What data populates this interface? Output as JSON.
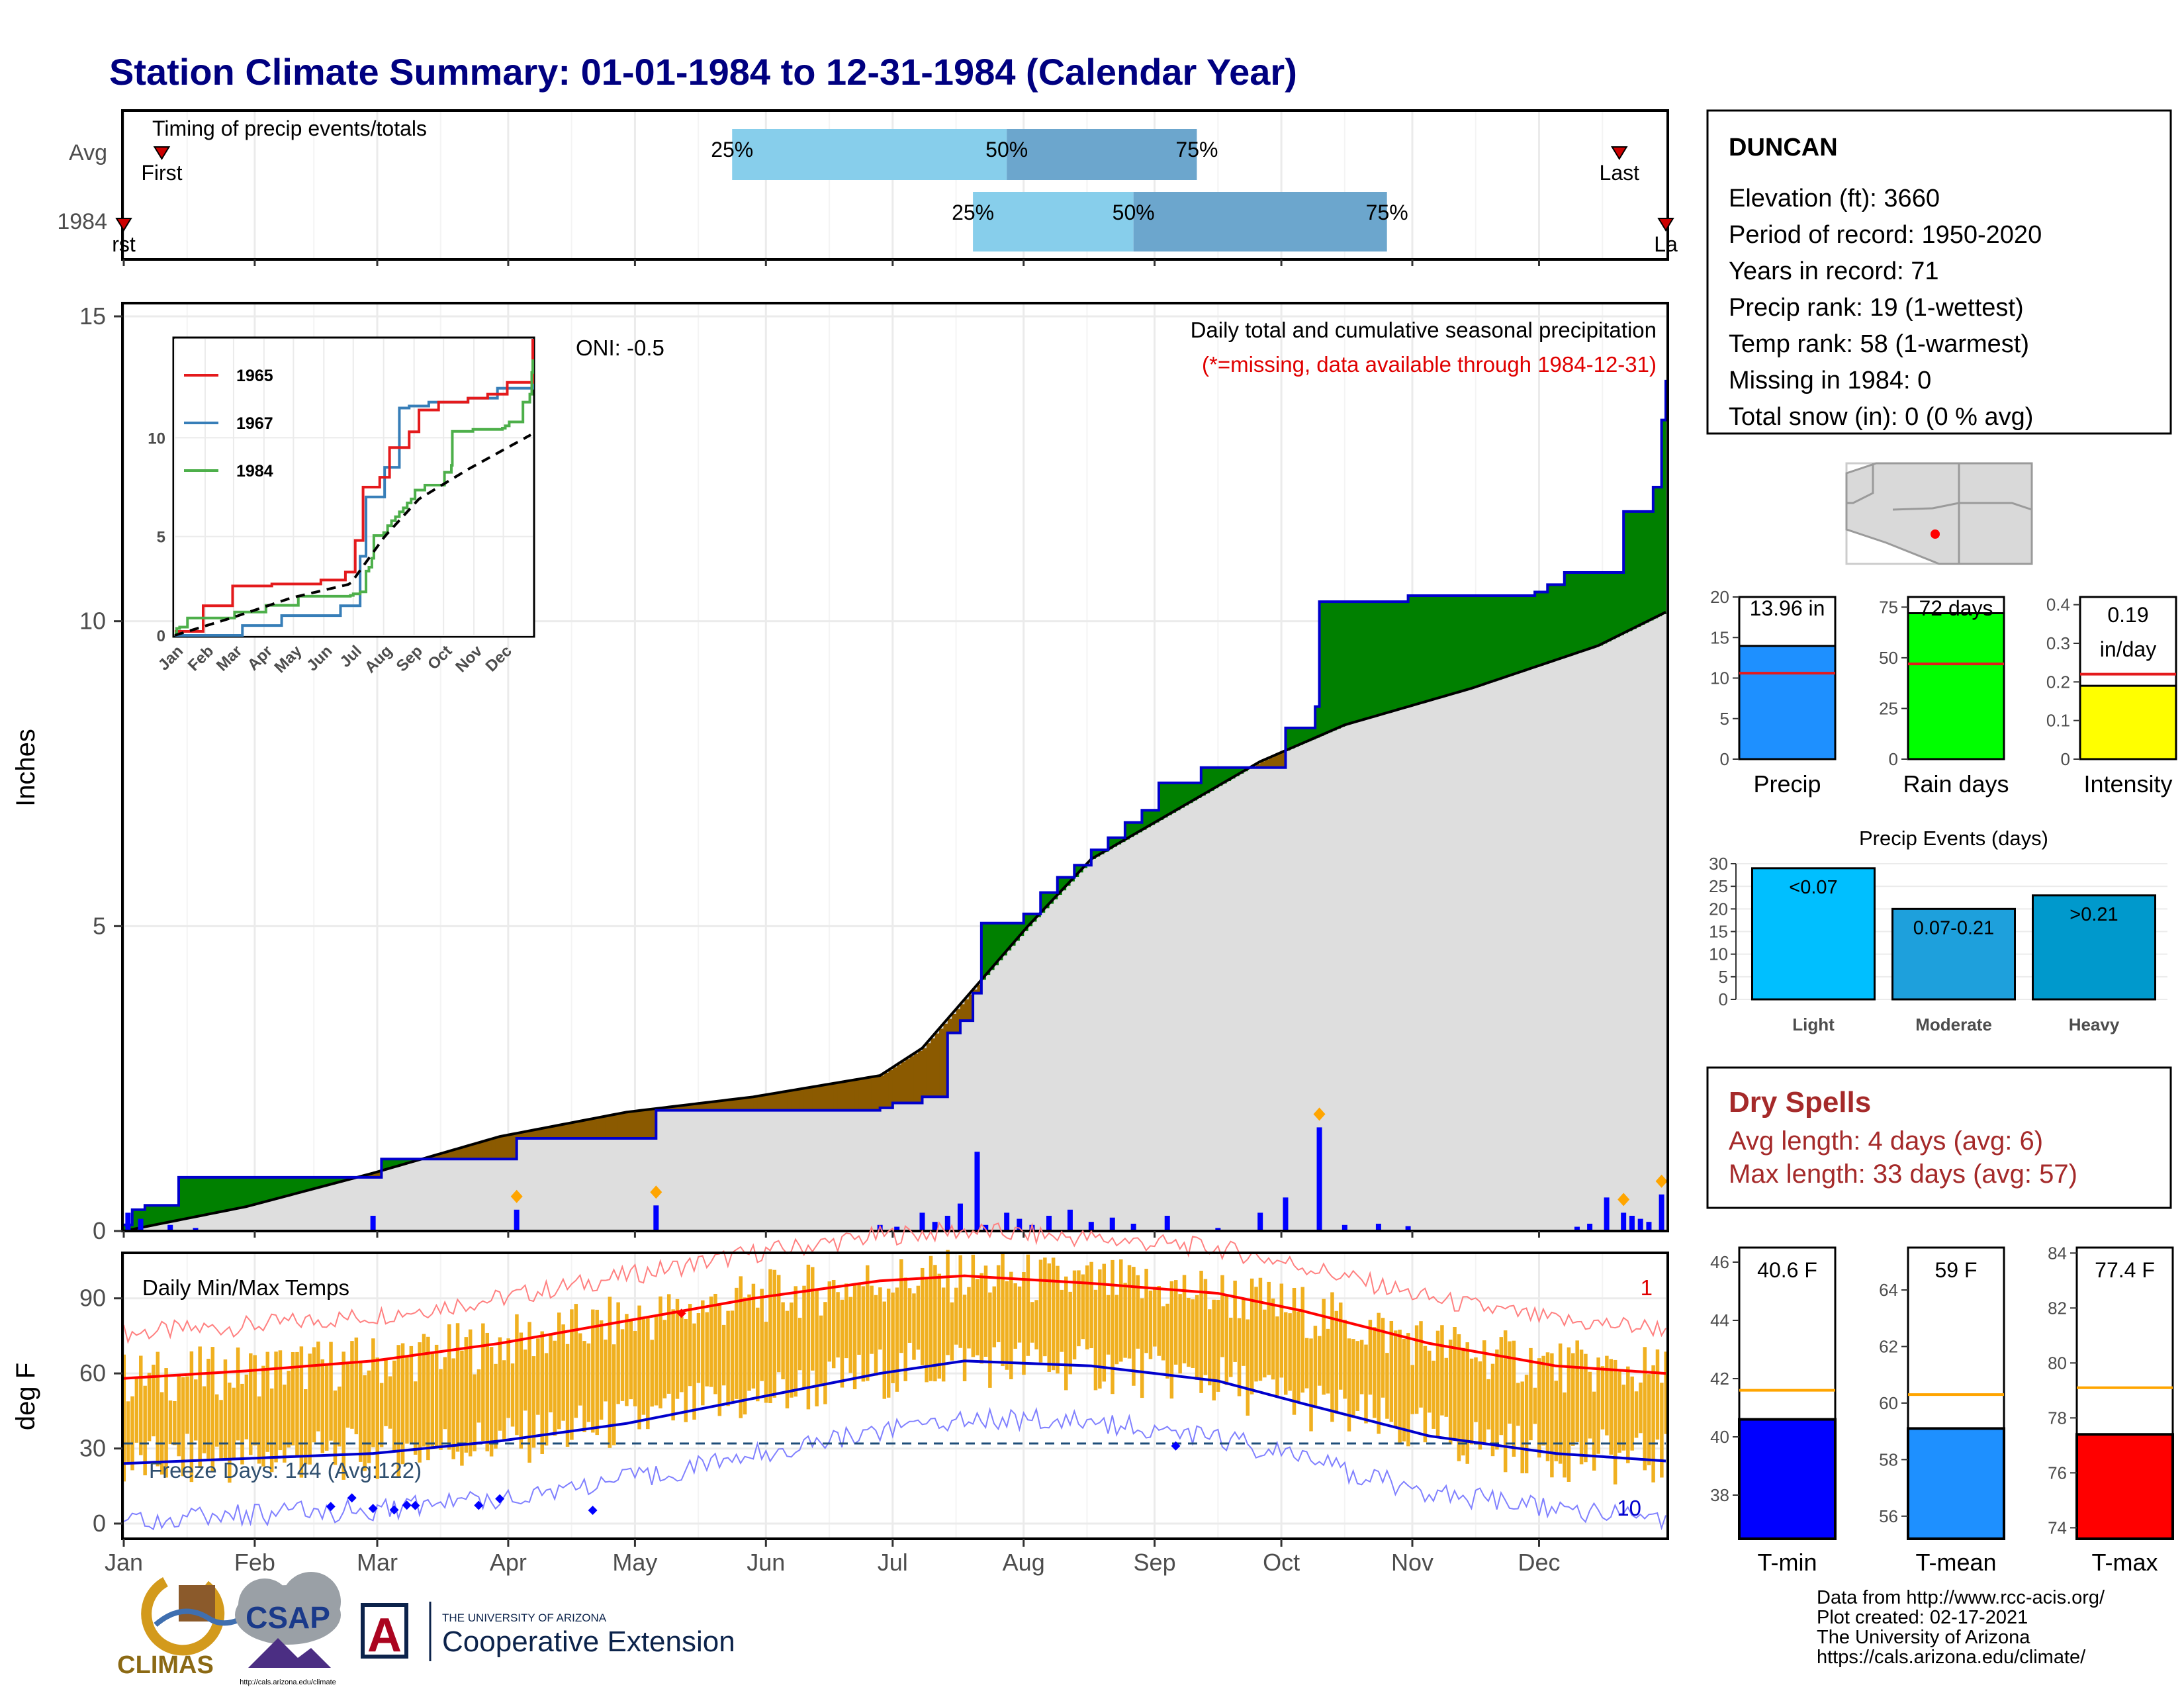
{
  "header": {
    "title": "Station Climate Summary: 01-01-1984 to 12-31-1984 (Calendar Year)"
  },
  "months": [
    "Jan",
    "Feb",
    "Mar",
    "Apr",
    "May",
    "Jun",
    "Jul",
    "Aug",
    "Sep",
    "Oct",
    "Nov",
    "Dec"
  ],
  "inset_months": [
    "Jan",
    "Feb",
    "Mar",
    "Apr",
    "May",
    "Jun",
    "Jul",
    "Aug",
    "Sep",
    "Oct",
    "Nov",
    "Dec"
  ],
  "timing": {
    "label": "Timing of precip events/totals",
    "row_labels": [
      "Avg",
      "1984"
    ],
    "first_label": "First",
    "last_label": "Last",
    "first_label_1984": "rst",
    "last_label_1984": "La",
    "avg": {
      "p25_day": 145,
      "p50_day": 210,
      "p75_day": 255,
      "first_day": 10,
      "last_day": 355
    },
    "y1984": {
      "p25_day": 202,
      "p50_day": 240,
      "p75_day": 300,
      "first_day": 1,
      "last_day": 366
    },
    "pct_labels": [
      "25%",
      "50%",
      "75%"
    ],
    "colors": {
      "low": "#87ceeb",
      "high": "#6ca6cd",
      "marker": "#cc0000"
    }
  },
  "station": {
    "name": "DUNCAN",
    "lines": [
      "Elevation (ft): 3660",
      "Period of record: 1950-2020",
      "Years in record: 71",
      "Precip rank: 19 (1-wettest)",
      "Temp rank: 58 (1-warmest)",
      "Missing in 1984: 0",
      "Total snow (in): 0 (0 % avg)"
    ]
  },
  "precip_panel": {
    "ylabel": "Inches",
    "y_ticks": [
      0,
      5,
      10,
      15
    ],
    "subtitle": "Daily total and cumulative seasonal precipitation",
    "missing_note": "(*=missing, data available through 1984-12-31)",
    "oni": "ONI: -0.5"
  },
  "inset": {
    "y_ticks": [
      0,
      5,
      10
    ],
    "legend": [
      {
        "name": "1965",
        "color": "#e41a1c"
      },
      {
        "name": "1967",
        "color": "#377eb8"
      },
      {
        "name": "1984",
        "color": "#4daf4a"
      }
    ]
  },
  "bar_cards": [
    {
      "label": "Precip",
      "value_text": "13.96 in",
      "value": 13.96,
      "avg": 10.6,
      "ylim": [
        0,
        20
      ],
      "ticks": [
        0,
        5,
        10,
        15,
        20
      ],
      "color": "#1e90ff"
    },
    {
      "label": "Rain days",
      "value_text": "72 days",
      "value": 72,
      "avg": 47,
      "ylim": [
        0,
        80
      ],
      "ticks": [
        0,
        25,
        50,
        75
      ],
      "color": "#00ff00"
    },
    {
      "label": "Intensity",
      "value_text": "0.19",
      "value_text2": "in/day",
      "value": 0.19,
      "avg": 0.22,
      "ylim": [
        0,
        0.42
      ],
      "ticks": [
        0.0,
        0.1,
        0.2,
        0.3,
        0.4
      ],
      "color": "#ffff00"
    }
  ],
  "events": {
    "title": "Precip Events (days)",
    "ticks": [
      0,
      5,
      10,
      15,
      20,
      25,
      30
    ],
    "bars": [
      {
        "category": "Light",
        "label": "<0.07",
        "value": 29,
        "color": "#00bfff"
      },
      {
        "category": "Moderate",
        "label": "0.07-0.21",
        "value": 20,
        "color": "#1ea0dc"
      },
      {
        "category": "Heavy",
        "label": ">0.21",
        "value": 23,
        "color": "#0099cc"
      }
    ]
  },
  "dry_spells": {
    "title": "Dry Spells",
    "avg_line": "Avg length: 4 days (avg: 6)",
    "max_line": "Max length: 33 days (avg: 57)"
  },
  "temp_panel": {
    "ylabel": "deg F",
    "title": "Daily Min/Max Temps",
    "y_ticks": [
      0,
      30,
      60,
      90
    ],
    "freeze_text": "Freeze Days: 144 (Avg:122)",
    "freeze_line": 32,
    "red_count": "1",
    "blue_count": "10"
  },
  "temp_cards": [
    {
      "label": "T-min",
      "value_text": "40.6 F",
      "value": 40.6,
      "avg": 41.6,
      "ylim": [
        36.5,
        46.5
      ],
      "ticks": [
        38,
        40,
        42,
        44,
        46
      ],
      "color": "#0000ff"
    },
    {
      "label": "T-mean",
      "value_text": "59 F",
      "value": 59.1,
      "avg": 60.3,
      "ylim": [
        55.2,
        65.5
      ],
      "ticks": [
        56,
        58,
        60,
        62,
        64
      ],
      "color": "#1e90ff"
    },
    {
      "label": "T-max",
      "value_text": "77.4 F",
      "value": 77.4,
      "avg": 79.1,
      "ylim": [
        73.6,
        84.2
      ],
      "ticks": [
        74,
        76,
        78,
        80,
        82,
        84
      ],
      "color": "#ff0000"
    }
  ],
  "footer": {
    "lines": [
      "Data from http://www.rcc-acis.org/",
      "Plot created: 02-17-2021",
      "The University of Arizona",
      "https://cals.arizona.edu/climate/"
    ],
    "climas": "CLIMAS",
    "csap": "CSAP",
    "csap_url": "http://cals.arizona.edu/climate",
    "ua_small": "THE UNIVERSITY OF ARIZONA",
    "ua_big": "Cooperative Extension",
    "ua_letter": "A"
  },
  "chart_data": {
    "type": "area",
    "x_unit": "day of year 1984",
    "ylim": [
      0,
      15
    ],
    "cum_1984": [
      [
        1,
        0.1
      ],
      [
        3,
        0.35
      ],
      [
        6,
        0.42
      ],
      [
        14,
        0.88
      ],
      [
        60,
        0.88
      ],
      [
        62,
        1.18
      ],
      [
        92,
        1.18
      ],
      [
        94,
        1.52
      ],
      [
        125,
        1.52
      ],
      [
        127,
        1.98
      ],
      [
        170,
        1.98
      ],
      [
        180,
        2.02
      ],
      [
        183,
        2.1
      ],
      [
        190,
        2.2
      ],
      [
        196,
        3.25
      ],
      [
        199,
        3.45
      ],
      [
        202,
        3.9
      ],
      [
        204,
        5.05
      ],
      [
        214,
        5.2
      ],
      [
        218,
        5.55
      ],
      [
        222,
        5.8
      ],
      [
        226,
        6.0
      ],
      [
        230,
        6.25
      ],
      [
        234,
        6.45
      ],
      [
        238,
        6.7
      ],
      [
        242,
        6.9
      ],
      [
        246,
        7.35
      ],
      [
        256,
        7.6
      ],
      [
        270,
        7.6
      ],
      [
        276,
        8.25
      ],
      [
        283,
        8.6
      ],
      [
        284,
        10.32
      ],
      [
        300,
        10.32
      ],
      [
        305,
        10.42
      ],
      [
        335,
        10.48
      ],
      [
        338,
        10.6
      ],
      [
        342,
        10.8
      ],
      [
        350,
        10.8
      ],
      [
        356,
        11.8
      ],
      [
        363,
        12.2
      ],
      [
        365,
        13.3
      ],
      [
        366,
        13.96
      ]
    ],
    "avg_cum": [
      [
        1,
        0.0
      ],
      [
        30,
        0.4
      ],
      [
        60,
        0.95
      ],
      [
        90,
        1.55
      ],
      [
        120,
        1.95
      ],
      [
        150,
        2.2
      ],
      [
        180,
        2.55
      ],
      [
        190,
        3.0
      ],
      [
        200,
        3.8
      ],
      [
        215,
        5.0
      ],
      [
        230,
        6.1
      ],
      [
        250,
        6.9
      ],
      [
        270,
        7.7
      ],
      [
        290,
        8.3
      ],
      [
        320,
        8.9
      ],
      [
        350,
        9.6
      ],
      [
        366,
        10.15
      ]
    ],
    "daily_precip": [
      [
        2,
        0.3
      ],
      [
        5,
        0.2
      ],
      [
        12,
        0.1
      ],
      [
        18,
        0.05
      ],
      [
        60,
        0.25
      ],
      [
        94,
        0.35
      ],
      [
        127,
        0.42
      ],
      [
        180,
        0.1
      ],
      [
        184,
        0.07
      ],
      [
        190,
        0.3
      ],
      [
        193,
        0.15
      ],
      [
        196,
        0.25
      ],
      [
        199,
        0.45
      ],
      [
        203,
        1.3
      ],
      [
        205,
        0.1
      ],
      [
        210,
        0.3
      ],
      [
        213,
        0.2
      ],
      [
        216,
        0.1
      ],
      [
        220,
        0.25
      ],
      [
        225,
        0.35
      ],
      [
        230,
        0.15
      ],
      [
        235,
        0.22
      ],
      [
        240,
        0.12
      ],
      [
        248,
        0.25
      ],
      [
        260,
        0.05
      ],
      [
        270,
        0.3
      ],
      [
        276,
        0.55
      ],
      [
        284,
        1.7
      ],
      [
        290,
        0.1
      ],
      [
        298,
        0.12
      ],
      [
        305,
        0.08
      ],
      [
        345,
        0.07
      ],
      [
        348,
        0.12
      ],
      [
        352,
        0.55
      ],
      [
        356,
        0.3
      ],
      [
        358,
        0.25
      ],
      [
        360,
        0.2
      ],
      [
        362,
        0.15
      ],
      [
        365,
        0.6
      ]
    ],
    "inset_1965": [
      [
        1,
        0.2
      ],
      [
        30,
        1.5
      ],
      [
        60,
        2.5
      ],
      [
        100,
        2.6
      ],
      [
        150,
        2.8
      ],
      [
        175,
        3.2
      ],
      [
        185,
        4.8
      ],
      [
        193,
        7.5
      ],
      [
        210,
        8.0
      ],
      [
        220,
        9.5
      ],
      [
        240,
        10.3
      ],
      [
        250,
        11.4
      ],
      [
        270,
        11.8
      ],
      [
        300,
        12.0
      ],
      [
        320,
        12.2
      ],
      [
        340,
        12.8
      ],
      [
        366,
        15.0
      ]
    ],
    "inset_1967": [
      [
        1,
        0.0
      ],
      [
        50,
        0.0
      ],
      [
        70,
        0.5
      ],
      [
        110,
        1.0
      ],
      [
        170,
        1.5
      ],
      [
        184,
        1.5
      ],
      [
        190,
        4.0
      ],
      [
        196,
        7.0
      ],
      [
        215,
        8.5
      ],
      [
        230,
        11.5
      ],
      [
        240,
        11.6
      ],
      [
        260,
        11.8
      ],
      [
        300,
        12.0
      ],
      [
        330,
        12.5
      ],
      [
        366,
        14.4
      ]
    ],
    "inset_avg": [
      [
        1,
        0.0
      ],
      [
        60,
        0.9
      ],
      [
        120,
        1.9
      ],
      [
        180,
        2.6
      ],
      [
        215,
        5.0
      ],
      [
        250,
        6.9
      ],
      [
        300,
        8.4
      ],
      [
        366,
        10.2
      ]
    ],
    "temp_max_smooth": [
      [
        1,
        58
      ],
      [
        30,
        61
      ],
      [
        60,
        65
      ],
      [
        90,
        72
      ],
      [
        120,
        81
      ],
      [
        150,
        90
      ],
      [
        180,
        97
      ],
      [
        200,
        99
      ],
      [
        230,
        96
      ],
      [
        260,
        92
      ],
      [
        280,
        85
      ],
      [
        310,
        72
      ],
      [
        340,
        63
      ],
      [
        366,
        60
      ]
    ],
    "temp_min_smooth": [
      [
        1,
        24
      ],
      [
        30,
        26
      ],
      [
        60,
        28
      ],
      [
        90,
        33
      ],
      [
        120,
        40
      ],
      [
        150,
        50
      ],
      [
        180,
        60
      ],
      [
        200,
        65
      ],
      [
        230,
        63
      ],
      [
        260,
        57
      ],
      [
        280,
        48
      ],
      [
        310,
        35
      ],
      [
        340,
        28
      ],
      [
        366,
        25
      ]
    ]
  }
}
